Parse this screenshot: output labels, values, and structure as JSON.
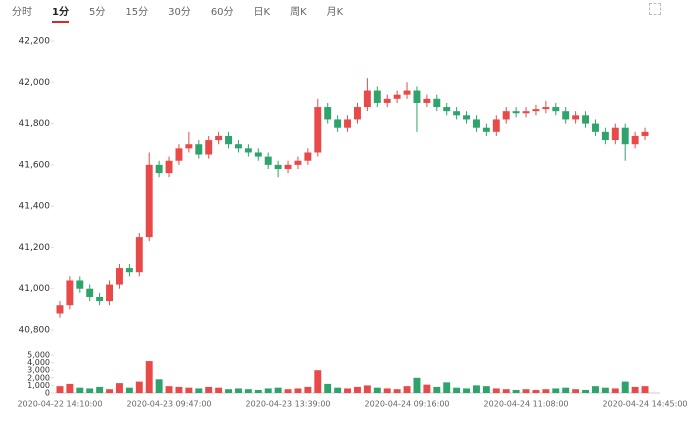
{
  "tabs": [
    "分时",
    "1分",
    "5分",
    "15分",
    "30分",
    "60分",
    "日K",
    "周K",
    "月K"
  ],
  "active_tab": 1,
  "chart_data": {
    "type": "candlestick",
    "up_color": "#e84a4a",
    "down_color": "#2ea36b",
    "categories": [
      "2020-04-22 14:10:00",
      null,
      null,
      null,
      null,
      null,
      null,
      null,
      null,
      null,
      null,
      "2020-04-23 09:47:00",
      null,
      null,
      null,
      null,
      null,
      null,
      null,
      null,
      null,
      null,
      null,
      "2020-04-23 13:39:00",
      null,
      null,
      null,
      null,
      null,
      null,
      null,
      null,
      null,
      null,
      null,
      "2020-04-24 09:16:00",
      null,
      null,
      null,
      null,
      null,
      null,
      null,
      null,
      null,
      null,
      null,
      "2020-04-24 11:08:00",
      null,
      null,
      null,
      null,
      null,
      null,
      null,
      null,
      null,
      null,
      null,
      "2020-04-24 14:45:00"
    ],
    "open": [
      40880,
      40920,
      41040,
      41000,
      40960,
      40940,
      41020,
      41100,
      41080,
      41250,
      41600,
      41560,
      41620,
      41680,
      41700,
      41650,
      41720,
      41740,
      41700,
      41680,
      41660,
      41640,
      41600,
      41580,
      41600,
      41620,
      41660,
      41880,
      41820,
      41780,
      41820,
      41880,
      41960,
      41900,
      41920,
      41940,
      41960,
      41900,
      41920,
      41880,
      41860,
      41840,
      41820,
      41780,
      41760,
      41820,
      41860,
      41850,
      41860,
      41870,
      41880,
      41860,
      41820,
      41840,
      41800,
      41760,
      41720,
      41780,
      41700,
      41740
    ],
    "high": [
      40940,
      41060,
      41060,
      41020,
      40980,
      41040,
      41120,
      41120,
      41270,
      41660,
      41620,
      41640,
      41700,
      41760,
      41720,
      41740,
      41760,
      41760,
      41720,
      41700,
      41680,
      41660,
      41620,
      41620,
      41640,
      41680,
      41920,
      41900,
      41840,
      41840,
      41900,
      42020,
      41980,
      41940,
      41960,
      42000,
      41980,
      41940,
      41940,
      41900,
      41880,
      41860,
      41840,
      41800,
      41840,
      41880,
      41880,
      41880,
      41890,
      41910,
      41900,
      41880,
      41860,
      41860,
      41820,
      41780,
      41800,
      41800,
      41760,
      41780
    ],
    "low": [
      40860,
      40900,
      40980,
      40940,
      40920,
      40920,
      41000,
      41060,
      41060,
      41230,
      41540,
      41540,
      41600,
      41660,
      41630,
      41630,
      41700,
      41680,
      41660,
      41640,
      41620,
      41580,
      41540,
      41560,
      41580,
      41600,
      41640,
      41800,
      41760,
      41760,
      41800,
      41860,
      41880,
      41880,
      41900,
      41920,
      41760,
      41880,
      41860,
      41840,
      41820,
      41800,
      41760,
      41740,
      41740,
      41800,
      41830,
      41830,
      41840,
      41850,
      41840,
      41800,
      41800,
      41780,
      41740,
      41700,
      41700,
      41620,
      41680,
      41720
    ],
    "close": [
      40920,
      41040,
      41000,
      40960,
      40940,
      41020,
      41100,
      41080,
      41250,
      41600,
      41560,
      41620,
      41680,
      41700,
      41650,
      41720,
      41740,
      41700,
      41680,
      41660,
      41640,
      41600,
      41580,
      41600,
      41620,
      41660,
      41880,
      41820,
      41780,
      41820,
      41880,
      41960,
      41900,
      41920,
      41940,
      41960,
      41900,
      41920,
      41880,
      41860,
      41840,
      41820,
      41780,
      41760,
      41820,
      41860,
      41850,
      41860,
      41870,
      41880,
      41860,
      41820,
      41840,
      41800,
      41760,
      41720,
      41780,
      41700,
      41740,
      41760
    ],
    "volume": [
      900,
      1200,
      700,
      600,
      800,
      500,
      1300,
      700,
      1500,
      4200,
      1800,
      900,
      800,
      700,
      600,
      800,
      700,
      500,
      600,
      500,
      400,
      600,
      700,
      500,
      600,
      800,
      3000,
      1200,
      700,
      600,
      800,
      1000,
      700,
      600,
      500,
      900,
      2000,
      1100,
      800,
      1400,
      700,
      600,
      1000,
      900,
      600,
      500,
      400,
      500,
      400,
      500,
      600,
      700,
      500,
      400,
      900,
      700,
      600,
      1500,
      800,
      900
    ],
    "ylim": [
      40800,
      42200
    ],
    "yticks": [
      {
        "value": 40800,
        "label": "40,800"
      },
      {
        "value": 41000,
        "label": "41,000"
      },
      {
        "value": 41200,
        "label": "41,200"
      },
      {
        "value": 41400,
        "label": "41,400"
      },
      {
        "value": 41600,
        "label": "41,600"
      },
      {
        "value": 41800,
        "label": "41,800"
      },
      {
        "value": 42000,
        "label": "42,000"
      },
      {
        "value": 42200,
        "label": "42,200"
      }
    ],
    "volume_ylim": [
      0,
      5000
    ],
    "volume_yticks": [
      0,
      {
        "value": 1000,
        "label": "1,000"
      },
      {
        "value": 2000,
        "label": "2,000"
      },
      {
        "value": 3000,
        "label": "3,000"
      },
      {
        "value": 4000,
        "label": "4,000"
      },
      {
        "value": 5000,
        "label": "5,000"
      }
    ]
  }
}
